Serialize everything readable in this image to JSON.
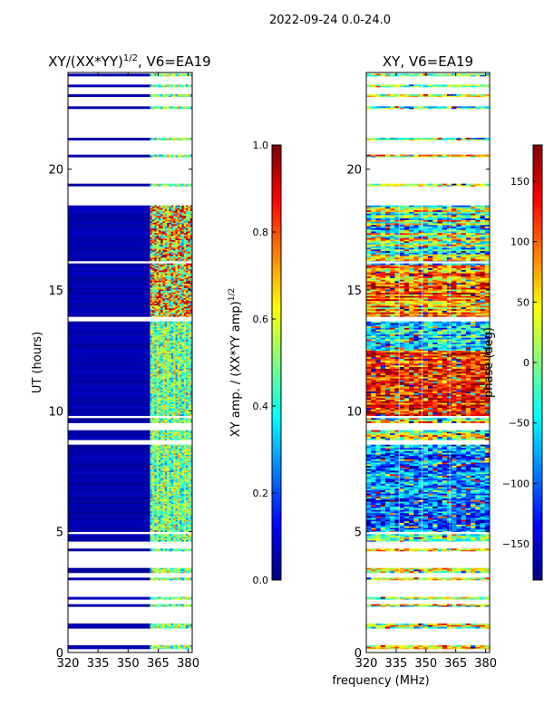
{
  "suptitle": "2022-09-24 0.0-24.0",
  "shared_xlabel": "frequency (MHz)",
  "colors": {
    "blank": "#ffffff",
    "jet": [
      "#00007f",
      "#0000ff",
      "#007fff",
      "#00ffff",
      "#7fff7f",
      "#ffff00",
      "#ff7f00",
      "#ff0000",
      "#7f0000"
    ]
  },
  "chart_data": [
    {
      "type": "heatmap",
      "panel": "left",
      "title": "XY/(XX*YY)^{1/2}, V6=EA19",
      "title_main": "XY/(XX*YY)",
      "title_sup": "1/2",
      "title_rest": ", V6=EA19",
      "xlabel": "",
      "ylabel": "UT (hours)",
      "xlim": [
        320,
        382
      ],
      "ylim": [
        0,
        24
      ],
      "xticks": [
        320,
        335,
        350,
        365,
        380
      ],
      "yticks": [
        0,
        5,
        10,
        15,
        20
      ],
      "signal_band_mhz": [
        361,
        382
      ],
      "colorbar": {
        "label_main": "XY amp. / (XX*YY amp)",
        "label_sup": "1/2",
        "range": [
          0.0,
          1.0
        ],
        "ticks": [
          0.0,
          0.2,
          0.4,
          0.6,
          0.8,
          1.0
        ],
        "tick_labels": [
          "0.0",
          "0.2",
          "0.4",
          "0.6",
          "0.8",
          "1.0"
        ]
      },
      "data_blocks_hours": [
        [
          0.15,
          0.3
        ],
        [
          1.0,
          1.2
        ],
        [
          1.9,
          2.0
        ],
        [
          2.2,
          2.3
        ],
        [
          3.0,
          3.1
        ],
        [
          3.3,
          3.5
        ],
        [
          4.2,
          4.3
        ],
        [
          4.6,
          4.9
        ],
        [
          5.0,
          8.6
        ],
        [
          8.8,
          9.2
        ],
        [
          9.5,
          9.7
        ],
        [
          9.8,
          13.7
        ],
        [
          13.9,
          16.1
        ],
        [
          16.2,
          18.5
        ],
        [
          19.3,
          19.4
        ],
        [
          20.5,
          20.6
        ],
        [
          21.2,
          21.3
        ],
        [
          22.5,
          22.6
        ],
        [
          23.0,
          23.1
        ],
        [
          23.4,
          23.5
        ],
        [
          23.85,
          23.95
        ]
      ]
    },
    {
      "type": "heatmap",
      "panel": "right",
      "title": "XY, V6=EA19",
      "xlabel": "frequency (MHz)",
      "ylabel": "",
      "xlim": [
        320,
        382
      ],
      "ylim": [
        0,
        24
      ],
      "xticks": [
        320,
        335,
        350,
        365,
        380
      ],
      "yticks": [
        0,
        5,
        10,
        15,
        20
      ],
      "colorbar": {
        "label": "phase (deg)",
        "range": [
          -180,
          180
        ],
        "ticks": [
          -150,
          -100,
          -50,
          0,
          50,
          100,
          150
        ],
        "tick_labels": [
          "−150",
          "−100",
          "−50",
          "0",
          "50",
          "100",
          "150"
        ]
      },
      "data_blocks_hours": [
        [
          0.15,
          0.3
        ],
        [
          1.0,
          1.2
        ],
        [
          1.9,
          2.0
        ],
        [
          2.2,
          2.3
        ],
        [
          3.0,
          3.1
        ],
        [
          3.3,
          3.5
        ],
        [
          4.2,
          4.3
        ],
        [
          4.6,
          4.9
        ],
        [
          5.0,
          8.6
        ],
        [
          8.8,
          9.2
        ],
        [
          9.5,
          9.7
        ],
        [
          9.8,
          13.7
        ],
        [
          13.9,
          16.1
        ],
        [
          16.2,
          18.5
        ],
        [
          19.3,
          19.4
        ],
        [
          20.5,
          20.6
        ],
        [
          21.2,
          21.3
        ],
        [
          22.5,
          22.6
        ],
        [
          23.0,
          23.1
        ],
        [
          23.4,
          23.5
        ],
        [
          23.85,
          23.95
        ]
      ]
    }
  ]
}
